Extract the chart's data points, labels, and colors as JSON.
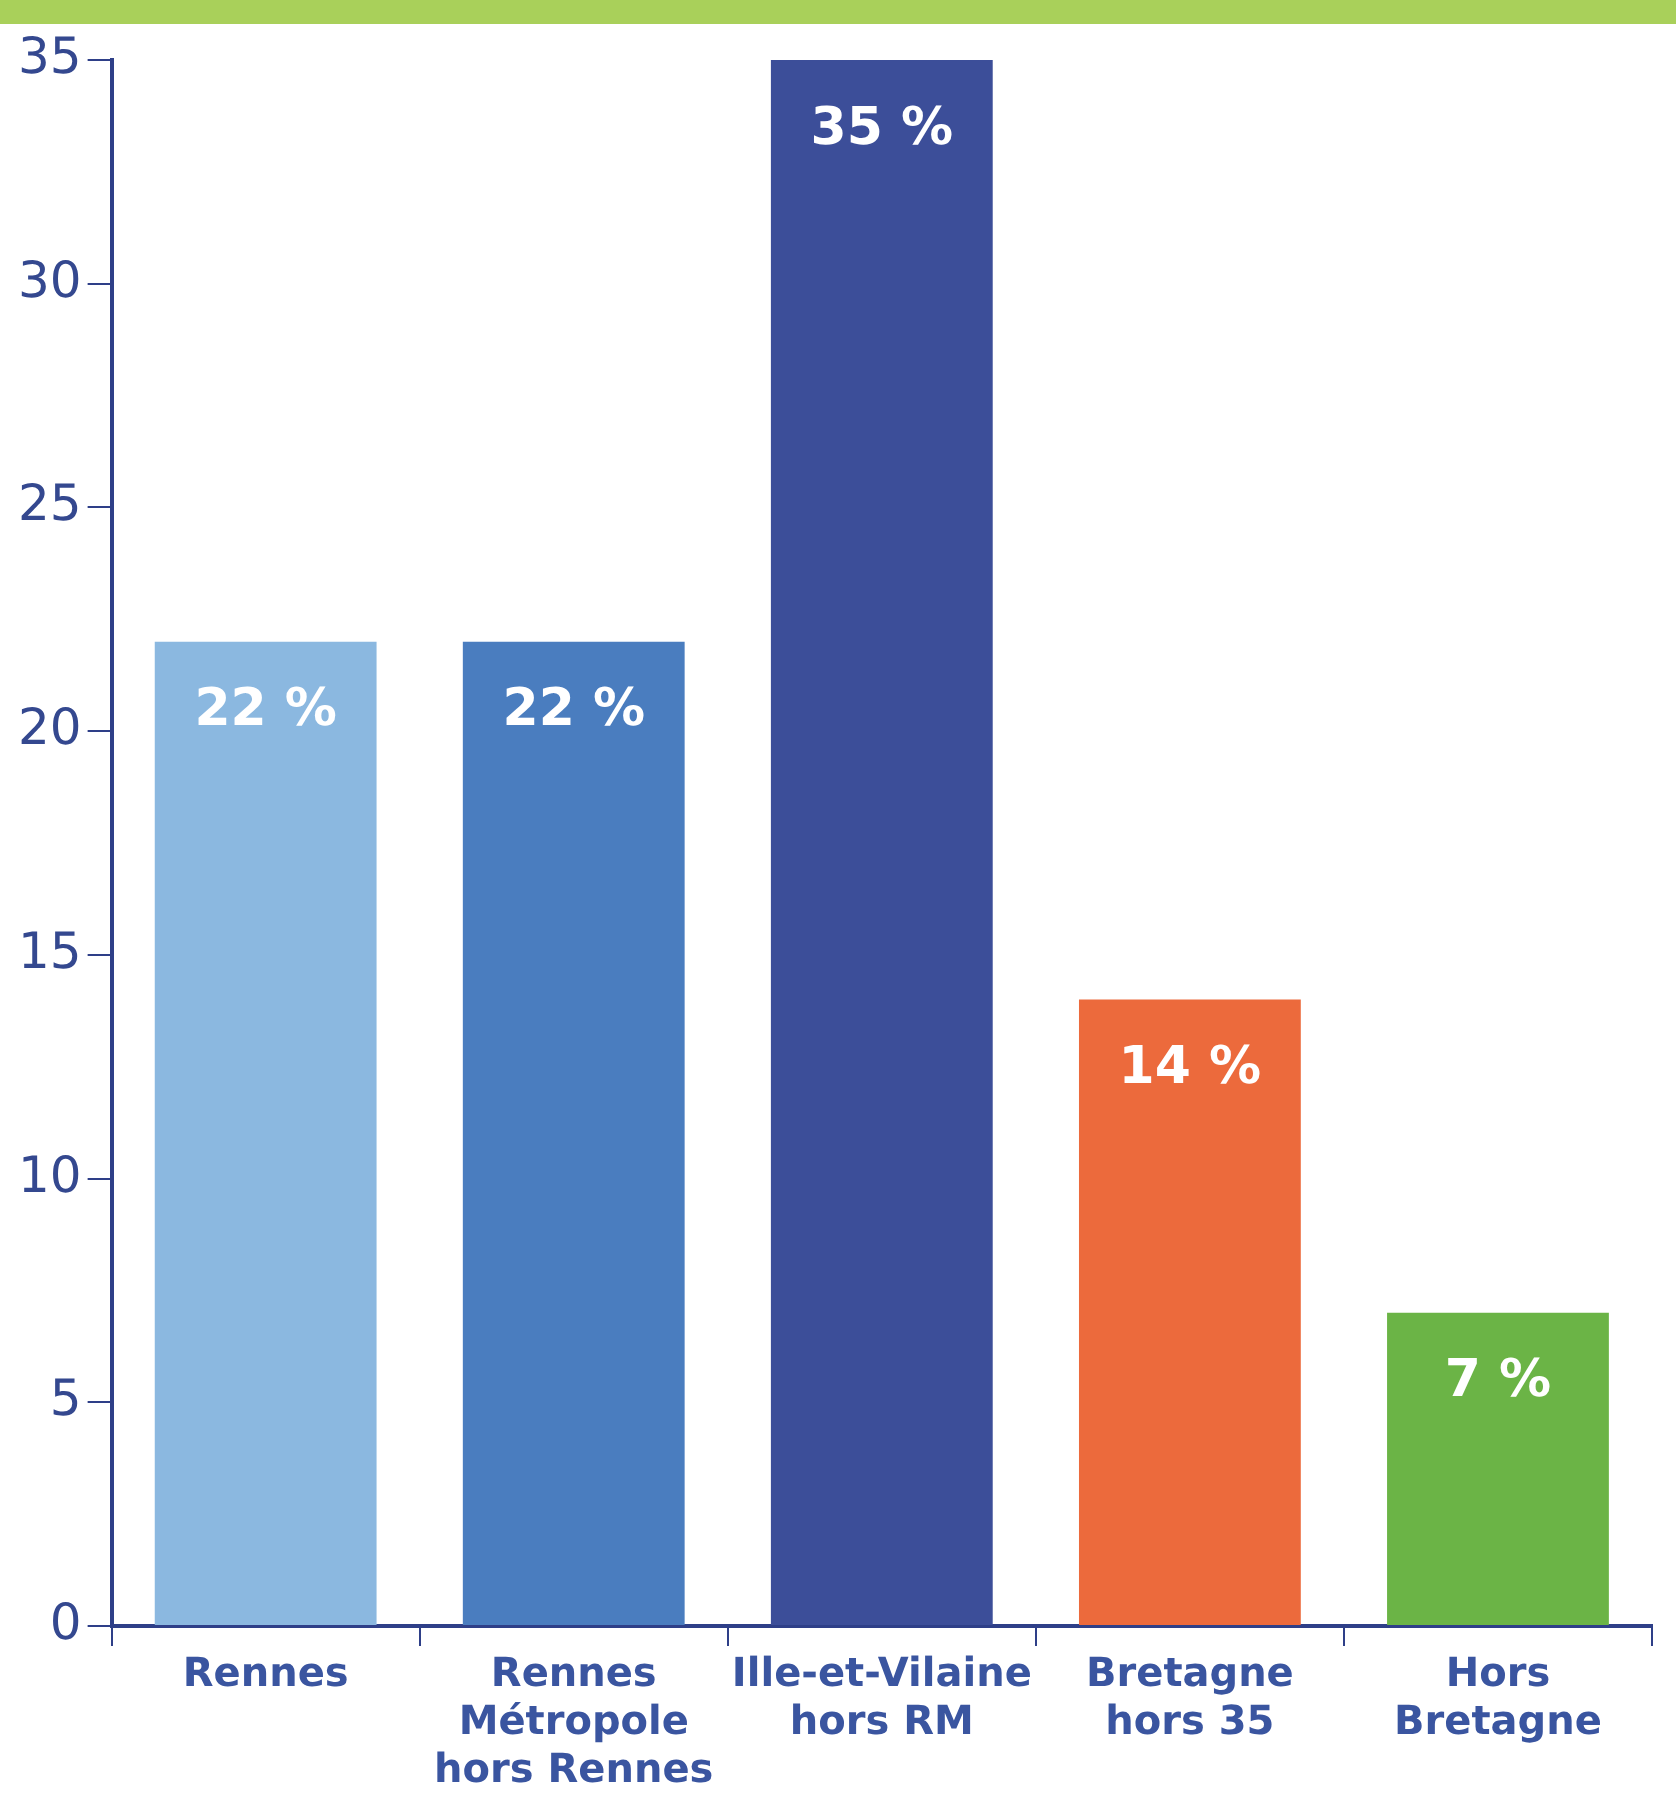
{
  "chart_data": {
    "type": "bar",
    "categories": [
      "Rennes",
      "Rennes Métropole hors Rennes",
      "Ille-et-Vilaine hors RM",
      "Bretagne hors 35",
      "Hors Bretagne"
    ],
    "values": [
      22,
      22,
      35,
      14,
      7
    ],
    "value_labels": [
      "22 %",
      "22 %",
      "35 %",
      "14 %",
      "7 %"
    ],
    "colors": [
      "#8bb8e0",
      "#4a7dbf",
      "#3c4e99",
      "#ec6a3c",
      "#6bb446"
    ],
    "ylim": [
      0,
      35
    ],
    "yticks": [
      0,
      5,
      10,
      15,
      20,
      25,
      30,
      35
    ],
    "grid": false,
    "legend": false
  }
}
